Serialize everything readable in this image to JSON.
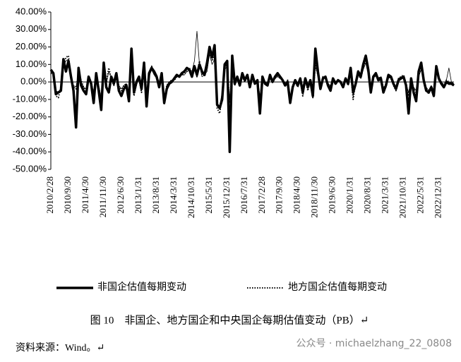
{
  "chart_data": {
    "type": "line",
    "categories": [
      "2010/2/28",
      null,
      null,
      null,
      null,
      null,
      null,
      "2010/9/30",
      null,
      null,
      null,
      null,
      null,
      null,
      "2011/4/30",
      null,
      null,
      null,
      null,
      null,
      null,
      "2011/11/30",
      null,
      null,
      null,
      null,
      null,
      null,
      "2012/6/30",
      null,
      null,
      null,
      null,
      null,
      null,
      "2013/1/31",
      null,
      null,
      null,
      null,
      null,
      null,
      "2013/8/31",
      null,
      null,
      null,
      null,
      null,
      null,
      "2014/3/31",
      null,
      null,
      null,
      null,
      null,
      null,
      "2014/10/31",
      null,
      null,
      null,
      null,
      null,
      null,
      "2015/5/31",
      null,
      null,
      null,
      null,
      null,
      null,
      "2015/12/31",
      null,
      null,
      null,
      null,
      null,
      null,
      "2016/7/31",
      null,
      null,
      null,
      null,
      null,
      null,
      "2017/2/28",
      null,
      null,
      null,
      null,
      null,
      null,
      "2017/9/30",
      null,
      null,
      null,
      null,
      null,
      null,
      "2018/4/30",
      null,
      null,
      null,
      null,
      null,
      null,
      "2018/11/30",
      null,
      null,
      null,
      null,
      null,
      null,
      "2019/6/30",
      null,
      null,
      null,
      null,
      null,
      null,
      "2020/1/31",
      null,
      null,
      null,
      null,
      null,
      null,
      "2020/8/31",
      null,
      null,
      null,
      null,
      null,
      null,
      "2021/3/31",
      null,
      null,
      null,
      null,
      null,
      null,
      "2021/10/31",
      null,
      null,
      null,
      null,
      null,
      null,
      "2022/5/31",
      null,
      null,
      null,
      null,
      null,
      null,
      "2022/12/31",
      null,
      null,
      null,
      null,
      null,
      null
    ],
    "series": [
      {
        "name": "非国企估值每期变动",
        "color": "#000000",
        "style": "thick",
        "values": [
          7,
          5,
          -7,
          -6,
          -5,
          13,
          6,
          12,
          3,
          -5,
          -26,
          8,
          -2,
          -5,
          -7,
          3,
          -1,
          -12,
          5,
          -5,
          -16,
          11,
          -3,
          -6,
          3,
          -1,
          5,
          -5,
          -8,
          -4,
          -2,
          -11,
          19,
          -6,
          0,
          3,
          -4,
          11,
          -14,
          5,
          8,
          6,
          3,
          -3,
          5,
          -12,
          -4,
          -1,
          0,
          2,
          4,
          3,
          5,
          6,
          8,
          7,
          3,
          9,
          4,
          10,
          6,
          4,
          11,
          20,
          14,
          21,
          -13,
          -15,
          -10,
          10,
          12,
          -40,
          15,
          -1,
          3,
          -2,
          5,
          1,
          4,
          -3,
          4,
          -1,
          1,
          -18,
          3,
          -1,
          -2,
          4,
          0,
          3,
          5,
          3,
          1,
          -2,
          0,
          -12,
          -3,
          1,
          -2,
          2,
          -6,
          2,
          -3,
          1,
          -8,
          19,
          6,
          -4,
          2,
          3,
          -2,
          -5,
          2,
          -1,
          1,
          0,
          -3,
          2,
          -1,
          8,
          -6,
          -1,
          6,
          3,
          10,
          15,
          7,
          -6,
          3,
          5,
          1,
          2,
          -6,
          -2,
          4,
          3,
          -1,
          -4,
          1,
          2,
          3,
          -2,
          -18,
          2,
          -6,
          -11,
          6,
          11,
          1,
          -5,
          -6,
          -3,
          -8,
          9,
          2,
          -1,
          -3,
          0,
          -1,
          -1,
          -2
        ]
      },
      {
        "name": "地方国企估值每期变动",
        "color": "#000000",
        "style": "dotted",
        "values": [
          5,
          4,
          -8,
          -9,
          -3,
          10,
          14,
          15,
          2,
          -3,
          -4,
          5,
          1,
          -3,
          -5,
          2,
          0,
          -7,
          3,
          -3,
          -10,
          6,
          -1,
          8,
          2,
          -2,
          4,
          -3,
          -5,
          -2,
          -1,
          -7,
          12,
          -8,
          -1,
          2,
          -6,
          8,
          -9,
          4,
          9,
          5,
          2,
          -2,
          4,
          -13,
          -2,
          0,
          1,
          1,
          3,
          4,
          4,
          5,
          6,
          8,
          5,
          8,
          3,
          12,
          4,
          5,
          8,
          18,
          12,
          15,
          -15,
          -18,
          -8,
          8,
          10,
          -12,
          8,
          -2,
          2,
          -1,
          3,
          0,
          3,
          -2,
          2,
          0,
          1,
          -10,
          2,
          0,
          -1,
          3,
          1,
          2,
          4,
          2,
          1,
          -1,
          1,
          -10,
          -2,
          0,
          -3,
          1,
          -8,
          2,
          -5,
          1,
          -9,
          10,
          4,
          -3,
          3,
          2,
          -1,
          -3,
          1,
          0,
          1,
          0,
          -2,
          1,
          -2,
          6,
          -10,
          0,
          4,
          2,
          8,
          12,
          5,
          -4,
          2,
          4,
          2,
          3,
          -4,
          -3,
          3,
          2,
          -2,
          -5,
          2,
          3,
          4,
          -1,
          -8,
          1,
          -4,
          -6,
          4,
          8,
          2,
          -4,
          -7,
          -3,
          -6,
          8,
          1,
          0,
          -2,
          1,
          0,
          -1,
          -1
        ]
      },
      {
        "color": "#000000",
        "style": "thin",
        "values": [
          6,
          5,
          -5,
          -6,
          -4,
          9,
          12,
          13,
          2,
          -2,
          -3,
          4,
          0,
          -3,
          -4,
          2,
          0,
          -6,
          3,
          -2,
          -9,
          5,
          -1,
          6,
          2,
          -1,
          3,
          -2,
          -4,
          -2,
          -1,
          -6,
          10,
          -6,
          -1,
          2,
          -5,
          7,
          -8,
          3,
          7,
          4,
          2,
          -2,
          3,
          -10,
          -2,
          0,
          1,
          1,
          3,
          3,
          4,
          4,
          6,
          7,
          6,
          12,
          29,
          10,
          3,
          4,
          6,
          16,
          10,
          13,
          -12,
          -14,
          -6,
          7,
          9,
          -10,
          7,
          -2,
          2,
          -1,
          3,
          0,
          3,
          -2,
          2,
          0,
          1,
          -8,
          2,
          0,
          -1,
          3,
          1,
          2,
          3,
          2,
          1,
          -1,
          1,
          -8,
          -2,
          0,
          -2,
          1,
          -6,
          2,
          -4,
          1,
          -7,
          9,
          4,
          -2,
          3,
          2,
          -1,
          -2,
          1,
          0,
          1,
          0,
          -2,
          1,
          -1,
          5,
          -8,
          0,
          4,
          2,
          7,
          11,
          4,
          -3,
          2,
          4,
          2,
          3,
          -3,
          -2,
          3,
          2,
          -1,
          -4,
          2,
          3,
          3,
          -1,
          -6,
          1,
          -3,
          -5,
          3,
          7,
          2,
          -3,
          -5,
          -2,
          -5,
          7,
          1,
          0,
          -2,
          1,
          8,
          0,
          -1
        ]
      }
    ],
    "ylim": [
      -50,
      40
    ],
    "yticks": [
      {
        "value": -50,
        "label": "-50.00%"
      },
      {
        "value": -40,
        "label": "-40.00%"
      },
      {
        "value": -30,
        "label": "-30.00%"
      },
      {
        "value": -20,
        "label": "-20.00%"
      },
      {
        "value": -10,
        "label": "-10.00%"
      },
      {
        "value": 0,
        "label": "0.00%"
      },
      {
        "value": 10,
        "label": "10.00%"
      },
      {
        "value": 20,
        "label": "20.00%"
      },
      {
        "value": 30,
        "label": "30.00%"
      },
      {
        "value": 40,
        "label": "40.00%"
      }
    ],
    "caption": "图 10　非国企、地方国企和中央国企每期估值变动（PB）↵",
    "source": "资料来源：Wind。↵",
    "watermark": "公众号 · michaelzhang_22_0808"
  }
}
